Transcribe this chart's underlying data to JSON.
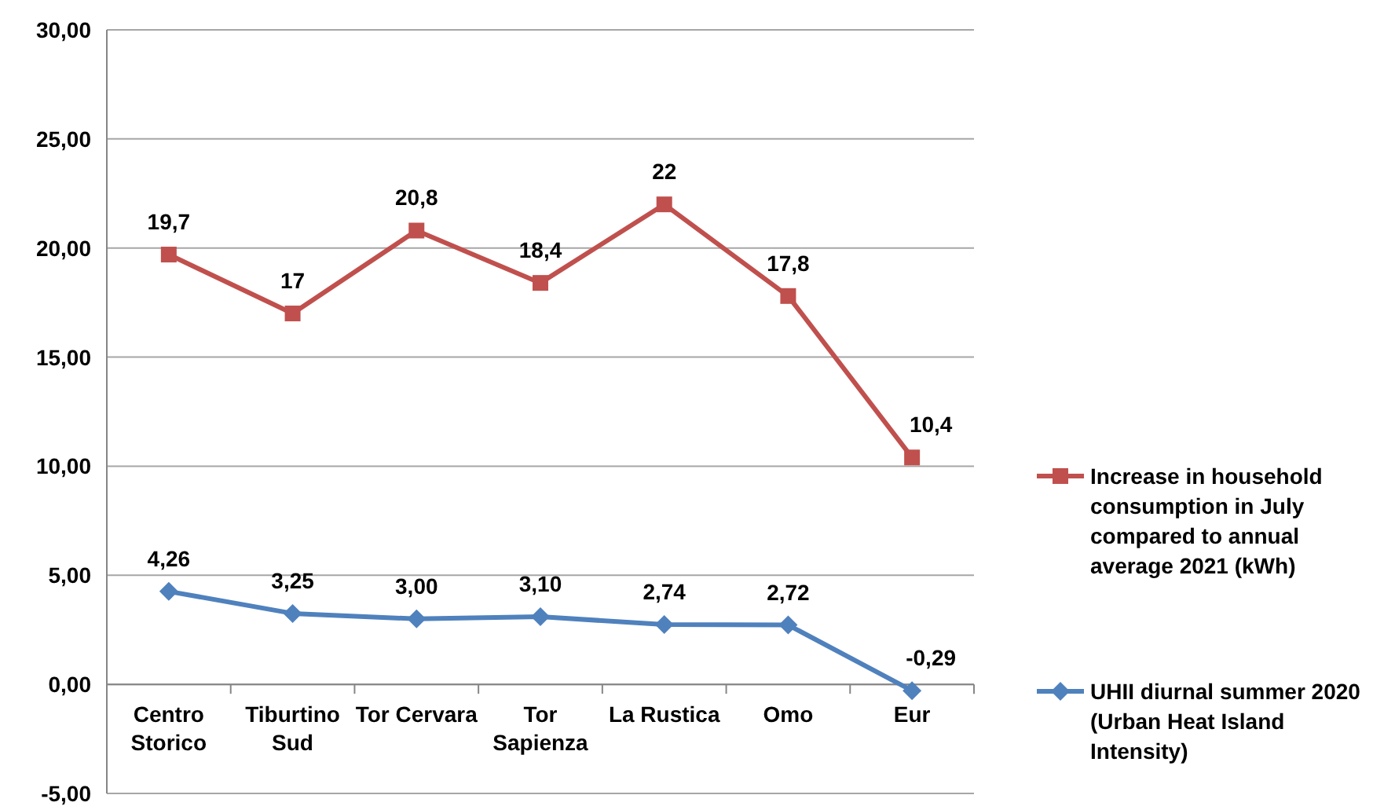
{
  "chart_data": {
    "type": "line",
    "categories": [
      "Centro Storico",
      "Tiburtino Sud",
      "Tor Cervara",
      "Tor Sapienza",
      "La Rustica",
      "Omo",
      "Eur"
    ],
    "series": [
      {
        "name": "Increase in household consumption in July compared to annual average 2021 (kWh)",
        "color": "#c0504d",
        "marker": "square",
        "values": [
          19.7,
          17,
          20.8,
          18.4,
          22,
          17.8,
          10.4
        ],
        "value_labels": [
          "19,7",
          "17",
          "20,8",
          "18,4",
          "22",
          "17,8",
          "10,4"
        ]
      },
      {
        "name": "UHII diurnal summer 2020 (Urban Heat Island Intensity)",
        "color": "#4f81bd",
        "marker": "diamond",
        "values": [
          4.26,
          3.25,
          3.0,
          3.1,
          2.74,
          2.72,
          -0.29
        ],
        "value_labels": [
          "4,26",
          "3,25",
          "3,00",
          "3,10",
          "2,74",
          "2,72",
          "-0,29"
        ]
      }
    ],
    "ylim": [
      -5,
      30
    ],
    "yticks": [
      {
        "value": -5,
        "label": "-5,00"
      },
      {
        "value": 0,
        "label": "0,00"
      },
      {
        "value": 5,
        "label": "5,00"
      },
      {
        "value": 10,
        "label": "10,00"
      },
      {
        "value": 15,
        "label": "15,00"
      },
      {
        "value": 20,
        "label": "20,00"
      },
      {
        "value": 25,
        "label": "25,00"
      },
      {
        "value": 30,
        "label": "30,00"
      }
    ],
    "grid": "y",
    "legend": "right"
  }
}
